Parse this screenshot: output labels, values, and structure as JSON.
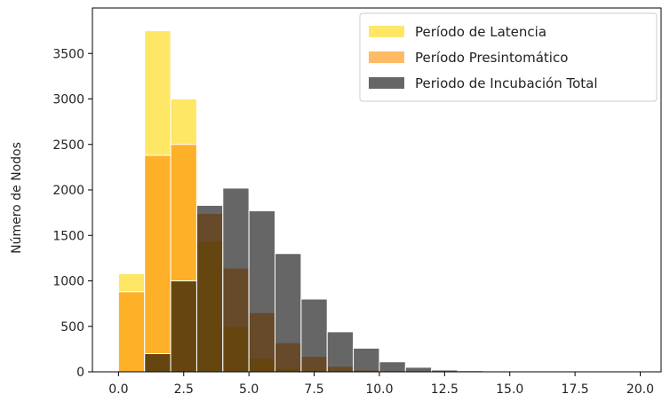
{
  "chart_data": {
    "type": "histogram",
    "title": "",
    "xlabel": "",
    "ylabel": "Número de Nodos",
    "xlim": [
      -1.0,
      20.8
    ],
    "ylim": [
      0,
      4000
    ],
    "xticks": [
      0.0,
      2.5,
      5.0,
      7.5,
      10.0,
      12.5,
      15.0,
      17.5,
      20.0
    ],
    "xtick_labels": [
      "0.0",
      "2.5",
      "5.0",
      "7.5",
      "10.0",
      "12.5",
      "15.0",
      "17.5",
      "20.0"
    ],
    "yticks": [
      0,
      500,
      1000,
      1500,
      2000,
      2500,
      3000,
      3500
    ],
    "ytick_labels": [
      "0",
      "500",
      "1000",
      "1500",
      "2000",
      "2500",
      "3000",
      "3500"
    ],
    "bin_width": 1.0,
    "grid": false,
    "legend_position": "top-right",
    "series": [
      {
        "name": "Período de Latencia",
        "color": "#FFD700",
        "alpha": 0.6,
        "bin_starts": [
          0,
          1,
          2,
          3,
          4,
          5,
          6,
          7,
          8,
          9,
          10
        ],
        "values": [
          1080,
          3750,
          3000,
          1440,
          500,
          150,
          40,
          20,
          8,
          3,
          1
        ]
      },
      {
        "name": "Período Presintomático",
        "color": "#FF8C00",
        "alpha": 0.6,
        "bin_starts": [
          0,
          1,
          2,
          3,
          4,
          5,
          6,
          7,
          8,
          9,
          10
        ],
        "values": [
          880,
          2380,
          2500,
          1740,
          1140,
          650,
          320,
          170,
          60,
          20,
          5
        ]
      },
      {
        "name": "Periodo de Incubación Total",
        "color": "#000000",
        "alpha": 0.6,
        "bin_starts": [
          0,
          1,
          2,
          3,
          4,
          5,
          6,
          7,
          8,
          9,
          10,
          11,
          12,
          13,
          14,
          15
        ],
        "values": [
          0,
          200,
          1000,
          1830,
          2020,
          1770,
          1300,
          800,
          440,
          260,
          110,
          50,
          20,
          12,
          6,
          2
        ]
      }
    ]
  }
}
